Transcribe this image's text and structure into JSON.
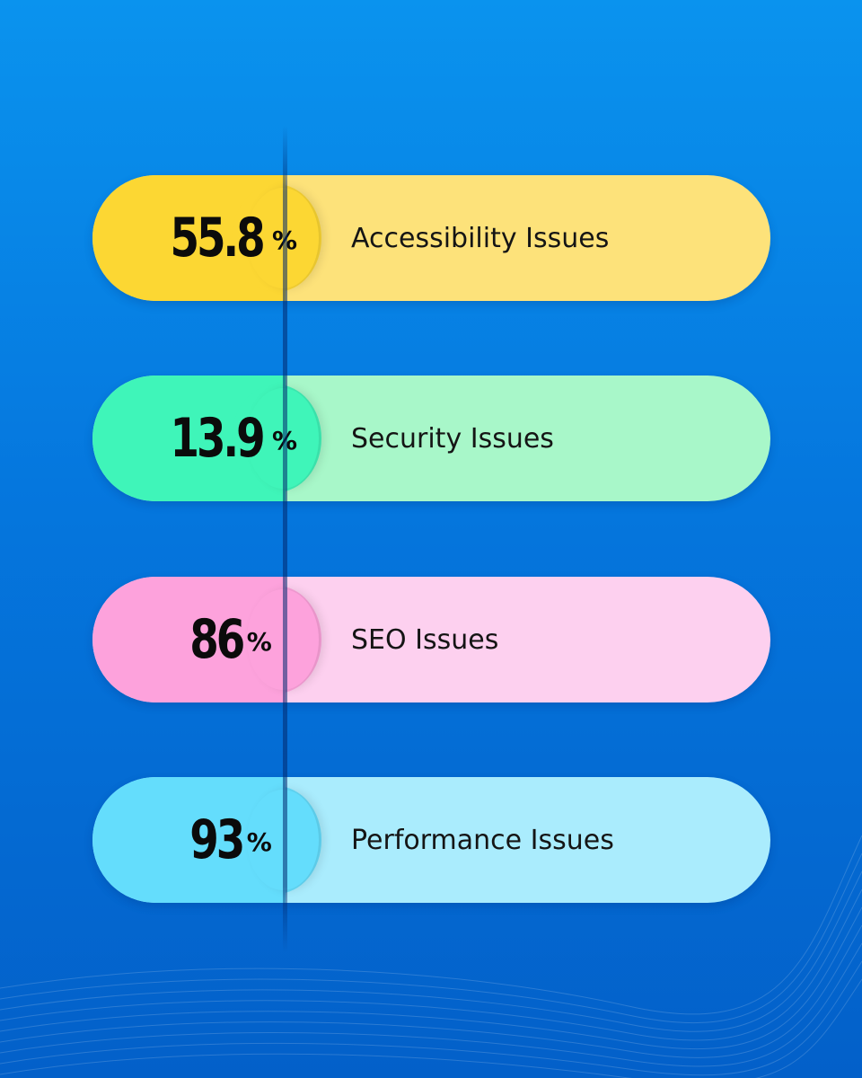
{
  "items": [
    {
      "value": "55.8",
      "unit": "%",
      "label": "Accessibility Issues",
      "light": "#fde27a",
      "dark": "#fcd733"
    },
    {
      "value": "13.9",
      "unit": "%",
      "label": "Security Issues",
      "light": "#a8f7c9",
      "dark": "#3ff5b9"
    },
    {
      "value": "86",
      "unit": "%",
      "label": "SEO Issues",
      "light": "#fdd0ef",
      "dark": "#fda2dc"
    },
    {
      "value": "93",
      "unit": "%",
      "label": "Performance Issues",
      "light": "#aaecfd",
      "dark": "#64ddfc"
    }
  ]
}
